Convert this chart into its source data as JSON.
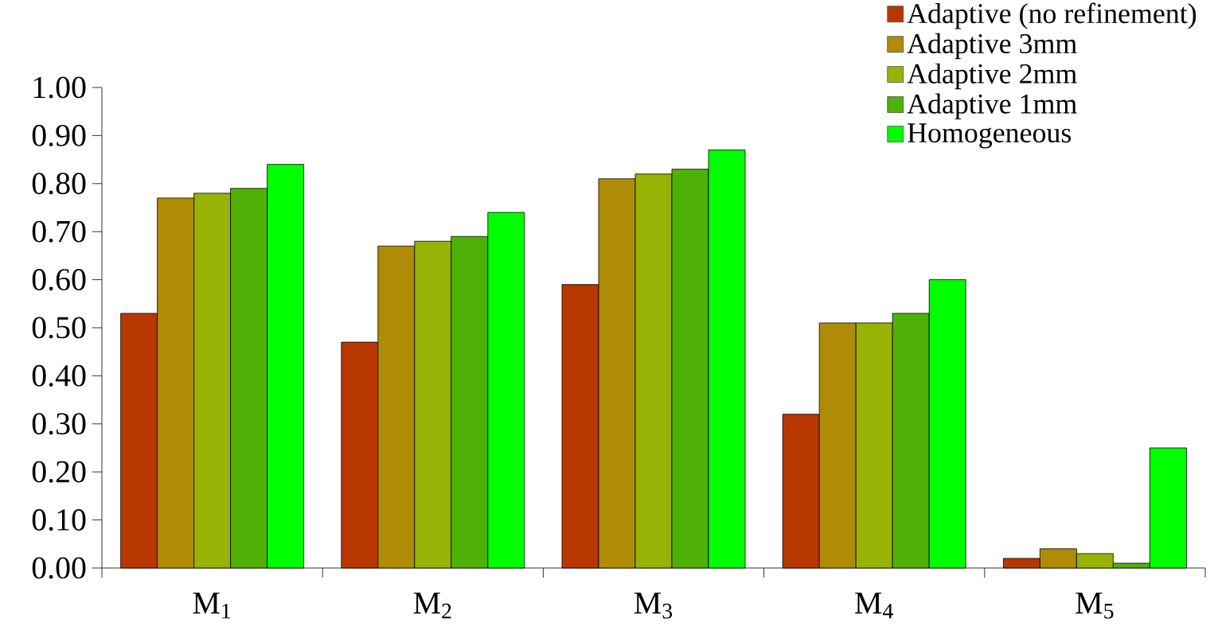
{
  "chart_data": {
    "type": "bar",
    "categories": [
      "M$_{1}$",
      "M$_{2}$",
      "M$_{3}$",
      "M$_{4}$",
      "M$_{5}$"
    ],
    "series": [
      {
        "name": "Adaptive (no refinement)",
        "color": "#b83700",
        "values": [
          0.53,
          0.47,
          0.59,
          0.32,
          0.02
        ]
      },
      {
        "name": "Adaptive 3mm",
        "color": "#b08c06",
        "values": [
          0.77,
          0.67,
          0.81,
          0.51,
          0.04
        ]
      },
      {
        "name": "Adaptive 2mm",
        "color": "#98b206",
        "values": [
          0.78,
          0.68,
          0.82,
          0.51,
          0.03
        ]
      },
      {
        "name": "Adaptive 1mm",
        "color": "#4fb106",
        "values": [
          0.79,
          0.69,
          0.83,
          0.53,
          0.01
        ]
      },
      {
        "name": "Homogeneous",
        "color": "#00ff00",
        "values": [
          0.84,
          0.74,
          0.87,
          0.6,
          0.25
        ]
      }
    ],
    "ylim": [
      0,
      1.0
    ],
    "yticks": [
      {
        "value": 0,
        "label": "0.00"
      },
      {
        "value": 0.1,
        "label": "0.10"
      },
      {
        "value": 0.2,
        "label": "0.20"
      },
      {
        "value": 0.3,
        "label": "0.30"
      },
      {
        "value": 0.4,
        "label": "0.40"
      },
      {
        "value": 0.5,
        "label": "0.50"
      },
      {
        "value": 0.6,
        "label": "0.60"
      },
      {
        "value": 0.7,
        "label": "0.70"
      },
      {
        "value": 0.8,
        "label": "0.80"
      },
      {
        "value": 0.9,
        "label": "0.90"
      },
      {
        "value": 1.0,
        "label": "1.00"
      }
    ],
    "grid": false,
    "legend": "top right"
  }
}
